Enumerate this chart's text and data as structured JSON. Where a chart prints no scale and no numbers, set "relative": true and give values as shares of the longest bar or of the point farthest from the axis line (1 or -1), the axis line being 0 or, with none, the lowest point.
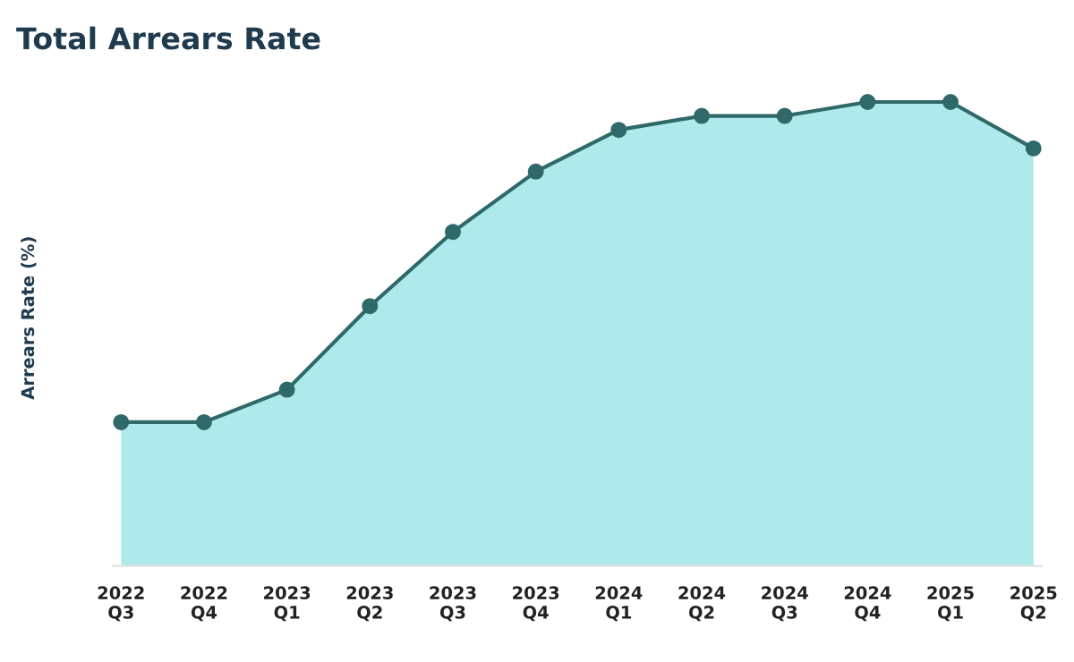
{
  "chart_data": {
    "type": "area",
    "title": "Total Arrears Rate",
    "ylabel": "Arrears Rate (%)",
    "relative": true,
    "categories": [
      "2022\nQ3",
      "2022\nQ4",
      "2023\nQ1",
      "2023\nQ2",
      "2023\nQ3",
      "2023\nQ4",
      "2024\nQ1",
      "2024\nQ2",
      "2024\nQ3",
      "2024\nQ4",
      "2025\nQ1",
      "2025\nQ2"
    ],
    "series": [
      {
        "color": "#aeeaec",
        "values": [
          0.31,
          0.31,
          0.38,
          0.56,
          0.72,
          0.85,
          0.94,
          0.97,
          0.97,
          1,
          1,
          0.9
        ]
      }
    ],
    "marker": "circle",
    "grid": false,
    "legend": false
  }
}
